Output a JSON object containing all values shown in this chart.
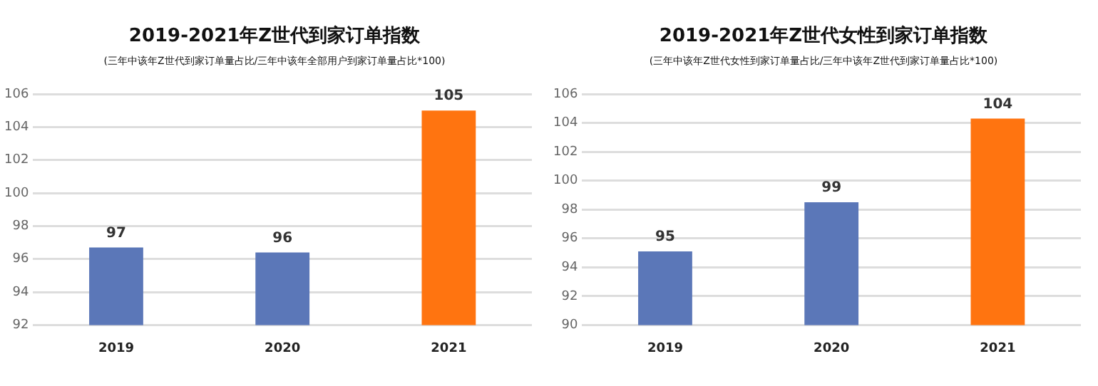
{
  "chart_data": [
    {
      "type": "bar",
      "title": "2019-2021年Z世代到家订单指数",
      "subtitle": "(三年中该年Z世代到家订单量占比/三年中该年全部用户到家订单量占比*100)",
      "categories": [
        "2019",
        "2020",
        "2021"
      ],
      "values": [
        96.7,
        96.4,
        105.0
      ],
      "colors": [
        "#5b77b8",
        "#5b77b8",
        "#ff7410"
      ],
      "value_labels": [
        "97",
        "96",
        "105"
      ],
      "ylim": [
        92,
        106
      ],
      "yticks": [
        92,
        94,
        96,
        98,
        100,
        102,
        104,
        106
      ],
      "grid": "y",
      "legend": false
    },
    {
      "type": "bar",
      "title": "2019-2021年Z世代女性到家订单指数",
      "subtitle": "(三年中该年Z世代女性到家订单量占比/三年中该年Z世代到家订单量占比*100)",
      "categories": [
        "2019",
        "2020",
        "2021"
      ],
      "values": [
        95.1,
        98.5,
        104.3
      ],
      "colors": [
        "#5b77b8",
        "#5b77b8",
        "#ff7410"
      ],
      "value_labels": [
        "95",
        "99",
        "104"
      ],
      "ylim": [
        90,
        106
      ],
      "yticks": [
        90,
        92,
        94,
        96,
        98,
        100,
        102,
        104,
        106
      ],
      "grid": "y",
      "legend": false
    }
  ]
}
